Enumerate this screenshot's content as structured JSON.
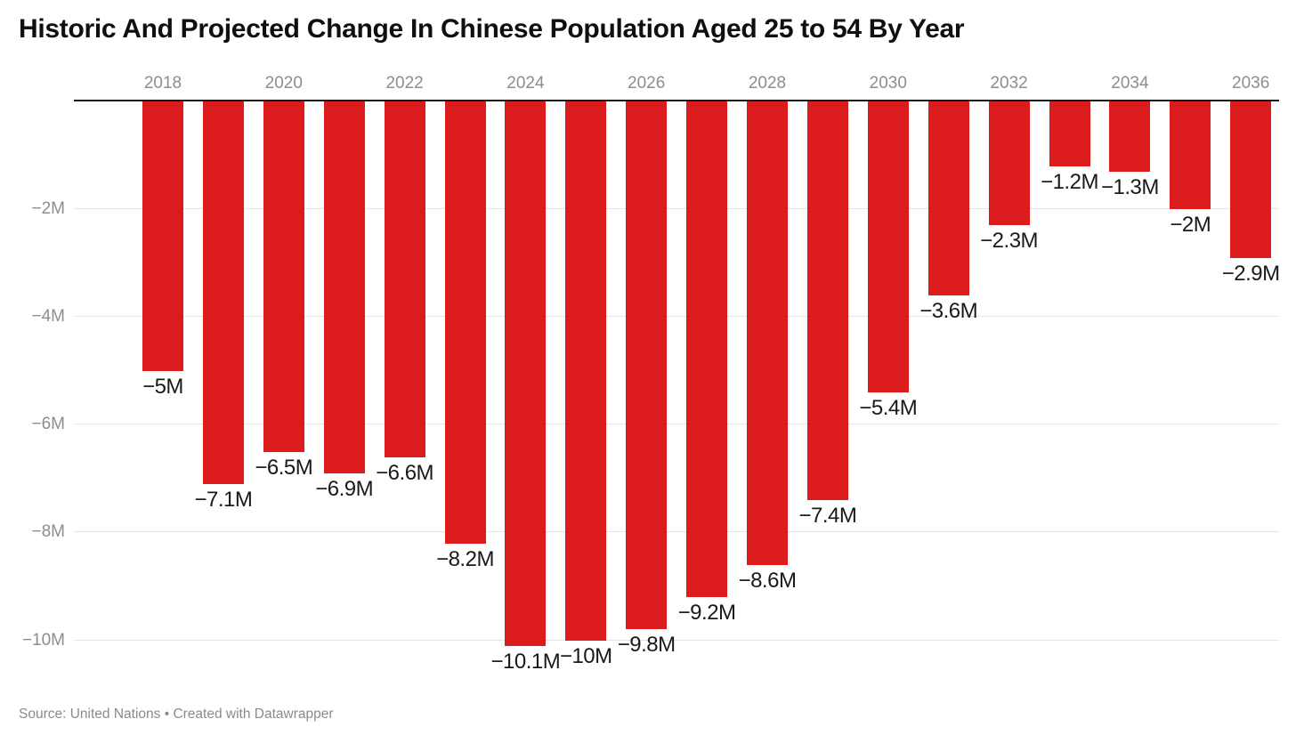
{
  "title": "Historic And Projected Change In Chinese Population Aged 25 to 54 By Year",
  "footer": {
    "source_text": "Source: United Nations",
    "separator": "•",
    "attribution": "Created with Datawrapper"
  },
  "chart_data": {
    "type": "bar",
    "title": "Historic And Projected Change In Chinese Population Aged 25 to 54 By Year",
    "xlabel": "",
    "ylabel": "",
    "categories": [
      2018,
      2019,
      2020,
      2021,
      2022,
      2023,
      2024,
      2025,
      2026,
      2027,
      2028,
      2029,
      2030,
      2031,
      2032,
      2033,
      2034,
      2035,
      2036
    ],
    "values": [
      -5,
      -7.1,
      -6.5,
      -6.9,
      -6.6,
      -8.2,
      -10.1,
      -10,
      -9.8,
      -9.2,
      -8.6,
      -7.4,
      -5.4,
      -3.6,
      -2.3,
      -1.2,
      -1.3,
      -2,
      -2.9
    ],
    "value_labels": [
      "−5M",
      "−7.1M",
      "−6.5M",
      "−6.9M",
      "−6.6M",
      "−8.2M",
      "−10.1M",
      "−10M",
      "−9.8M",
      "−9.2M",
      "−8.6M",
      "−7.4M",
      "−5.4M",
      "−3.6M",
      "−2.3M",
      "−1.2M",
      "−1.3M",
      "−2M",
      "−2.9M"
    ],
    "x_tick_labels": [
      "2018",
      "2020",
      "2022",
      "2024",
      "2026",
      "2028",
      "2030",
      "2032",
      "2034",
      "2036"
    ],
    "y_ticks": [
      "−2M",
      "−4M",
      "−6M",
      "−8M",
      "−10M"
    ],
    "y_tick_values": [
      -2,
      -4,
      -6,
      -8,
      -10
    ],
    "ylim": [
      -10.9,
      0
    ],
    "units": "millions of people per year",
    "bar_color": "#dc1b1c",
    "grid": "horizontal gridlines, zero baseline on top, bars extend downward",
    "legend_position": "none"
  }
}
